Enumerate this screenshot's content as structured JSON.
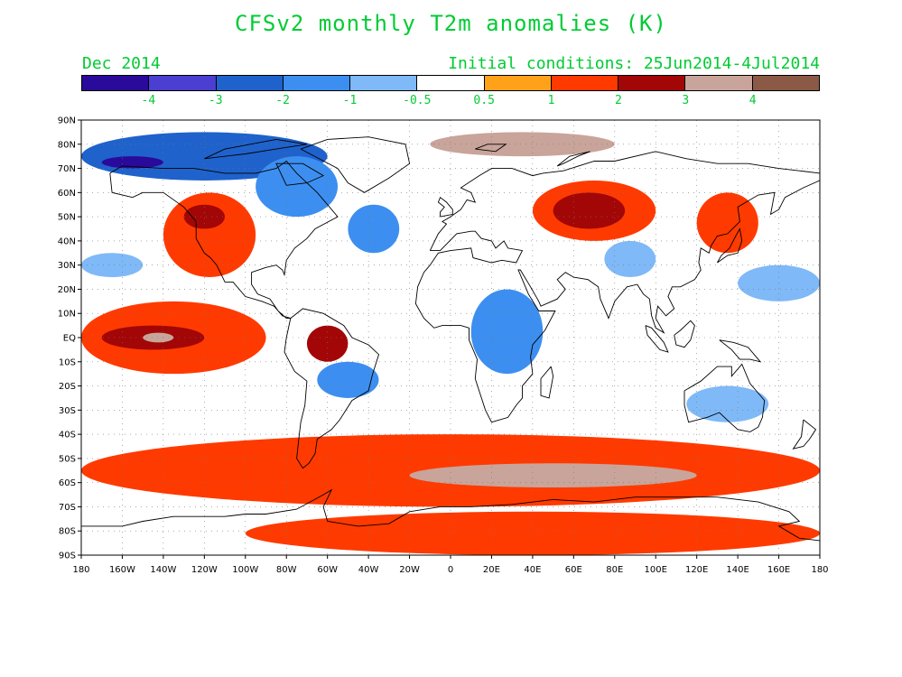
{
  "title": "CFSv2 monthly T2m anomalies (K)",
  "subtitle_left": "Dec 2014",
  "subtitle_right": "Initial conditions: 25Jun2014-4Jul2014",
  "colors": {
    "text_green": "#00cc33",
    "ocean_bg": "#ffffff",
    "coast": "#000000"
  },
  "colorbar": {
    "colors": [
      "#2a0a9a",
      "#4a3fd0",
      "#1f62cc",
      "#3c8ff0",
      "#7fb9f7",
      "#ffffff",
      "#ffa21a",
      "#ff3a00",
      "#a30606",
      "#c9a49a",
      "#8a5a47"
    ],
    "labels": [
      "-4",
      "-3",
      "-2",
      "-1",
      "-0.5",
      "0.5",
      "1",
      "2",
      "3",
      "4"
    ]
  },
  "axes": {
    "lon_labels": [
      "180",
      "160W",
      "140W",
      "120W",
      "100W",
      "80W",
      "60W",
      "40W",
      "20W",
      "0",
      "20E",
      "40E",
      "60E",
      "80E",
      "100E",
      "120E",
      "140E",
      "160E",
      "180"
    ],
    "lat_labels": [
      "90N",
      "80N",
      "70N",
      "60N",
      "50N",
      "40N",
      "30N",
      "20N",
      "10N",
      "EQ",
      "10S",
      "20S",
      "30S",
      "40S",
      "50S",
      "60S",
      "70S",
      "80S",
      "90S"
    ]
  },
  "chart_data": {
    "type": "heatmap",
    "title": "CFSv2 monthly T2m anomalies (K)",
    "valid_month": "Dec 2014",
    "initial_conditions": "25Jun2014-4Jul2014",
    "xlim": [
      -180,
      180
    ],
    "ylim": [
      -90,
      90
    ],
    "x_ticks_deg": [
      -180,
      -160,
      -140,
      -120,
      -100,
      -80,
      -60,
      -40,
      -20,
      0,
      20,
      40,
      60,
      80,
      100,
      120,
      140,
      160,
      180
    ],
    "y_ticks_deg": [
      90,
      80,
      70,
      60,
      50,
      40,
      30,
      20,
      10,
      0,
      -10,
      -20,
      -30,
      -40,
      -50,
      -60,
      -70,
      -80,
      -90
    ],
    "contour_levels": [
      -4,
      -3,
      -2,
      -1,
      -0.5,
      0.5,
      1,
      2,
      3,
      4
    ],
    "features": [
      {
        "name": "Arctic Canada / Alaska cold",
        "lon": [
          -180,
          -60
        ],
        "lat": [
          65,
          85
        ],
        "anomaly": -2
      },
      {
        "name": "Arctic core cold",
        "lon": [
          -170,
          -140
        ],
        "lat": [
          70,
          75
        ],
        "anomaly": -4
      },
      {
        "name": "Western North America warm",
        "lon": [
          -140,
          -95
        ],
        "lat": [
          25,
          60
        ],
        "anomaly": 1
      },
      {
        "name": "Pacific NW warm core",
        "lon": [
          -130,
          -110
        ],
        "lat": [
          45,
          55
        ],
        "anomaly": 2
      },
      {
        "name": "Eastern Canada / Greenland cold",
        "lon": [
          -95,
          -55
        ],
        "lat": [
          50,
          75
        ],
        "anomaly": -1
      },
      {
        "name": "North Atlantic cold",
        "lon": [
          -50,
          -25
        ],
        "lat": [
          35,
          55
        ],
        "anomaly": -1
      },
      {
        "name": "Barents / Kara warm",
        "lon": [
          -10,
          80
        ],
        "lat": [
          75,
          85
        ],
        "anomaly": 3
      },
      {
        "name": "Russia / Siberia warm",
        "lon": [
          40,
          100
        ],
        "lat": [
          40,
          65
        ],
        "anomaly": 1
      },
      {
        "name": "Central Asia warm core",
        "lon": [
          50,
          85
        ],
        "lat": [
          45,
          60
        ],
        "anomaly": 2
      },
      {
        "name": "Tibet / South Asia cold",
        "lon": [
          75,
          100
        ],
        "lat": [
          25,
          40
        ],
        "anomaly": -0.5
      },
      {
        "name": "Japan / Korea warm",
        "lon": [
          120,
          150
        ],
        "lat": [
          35,
          60
        ],
        "anomaly": 1
      },
      {
        "name": "North Pacific cold",
        "lon": [
          -180,
          -150
        ],
        "lat": [
          25,
          35
        ],
        "anomaly": -0.5
      },
      {
        "name": "NE Pacific cold",
        "lon": [
          140,
          180
        ],
        "lat": [
          15,
          30
        ],
        "anomaly": -0.5
      },
      {
        "name": "Equatorial Pacific warm (El Nino)",
        "lon": [
          -180,
          -90
        ],
        "lat": [
          -15,
          15
        ],
        "anomaly": 1
      },
      {
        "name": "Equatorial Pacific warm core",
        "lon": [
          -170,
          -120
        ],
        "lat": [
          -5,
          5
        ],
        "anomaly": 2
      },
      {
        "name": "Nino core",
        "lon": [
          -150,
          -135
        ],
        "lat": [
          -2,
          2
        ],
        "anomaly": 3
      },
      {
        "name": "Amazon warm",
        "lon": [
          -70,
          -50
        ],
        "lat": [
          -10,
          5
        ],
        "anomaly": 2
      },
      {
        "name": "South America cold",
        "lon": [
          -65,
          -35
        ],
        "lat": [
          -25,
          -10
        ],
        "anomaly": -1
      },
      {
        "name": "East / Central Africa cold",
        "lon": [
          10,
          45
        ],
        "lat": [
          -15,
          20
        ],
        "anomaly": -1
      },
      {
        "name": "Australia cold",
        "lon": [
          115,
          155
        ],
        "lat": [
          -35,
          -20
        ],
        "anomaly": -0.5
      },
      {
        "name": "Southern Ocean warm",
        "lon": [
          -180,
          180
        ],
        "lat": [
          -70,
          -40
        ],
        "anomaly": 1
      },
      {
        "name": "Southern Ocean warm core",
        "lon": [
          -20,
          120
        ],
        "lat": [
          -62,
          -52
        ],
        "anomaly": 3
      },
      {
        "name": "Antarctica warm",
        "lon": [
          -100,
          180
        ],
        "lat": [
          -90,
          -72
        ],
        "anomaly": 1
      }
    ]
  }
}
